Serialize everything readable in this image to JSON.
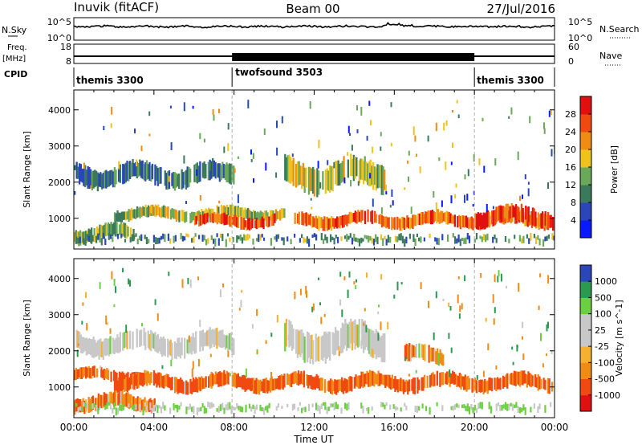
{
  "header": {
    "radar": "Inuvik (fitACF)",
    "beam": "Beam 00",
    "date": "27/Jul/2016"
  },
  "noise_panel": {
    "left_label": "N.Sky",
    "right_label": "N.Search",
    "left_ticks": [
      "10^5",
      "10^0"
    ],
    "right_ticks": [
      "10^5",
      "10^0"
    ]
  },
  "freq_panel": {
    "left_label_1": "Freq.",
    "left_label_2": "[MHz]",
    "right_label": "Nave",
    "left_ticks": [
      "18",
      "8"
    ],
    "right_ticks": [
      "60",
      "0"
    ]
  },
  "cpid_panel": {
    "label": "CPID",
    "segments": [
      {
        "name": "themis 3300",
        "start_hour": 0,
        "end_hour": 7.9
      },
      {
        "name": "twofsound 3503",
        "start_hour": 7.9,
        "end_hour": 20.0
      },
      {
        "name": "themis 3300",
        "start_hour": 20.0,
        "end_hour": 24
      }
    ]
  },
  "colors": {
    "power_scale": [
      "#0a1aff",
      "#2a46b8",
      "#3a7a5a",
      "#6aa85a",
      "#f0c21e",
      "#f08c14",
      "#f04a10",
      "#e01010"
    ],
    "velocity_scale": [
      "#e01010",
      "#f04a10",
      "#f08c14",
      "#f5b030",
      "#c8c8c8",
      "#c8c8c8",
      "#6ad040",
      "#2a9a50",
      "#2a46b8"
    ]
  },
  "chart_data": [
    {
      "type": "heatmap",
      "panel": "power",
      "ylabel": "Slant Range [km]",
      "yticks": [
        "1000",
        "2000",
        "3000",
        "4000"
      ],
      "ylim": [
        150,
        4550
      ],
      "xlim_hours": [
        0,
        24
      ],
      "colorbar": {
        "label": "Power [dB]",
        "ticks": [
          "4",
          "8",
          "12",
          "16",
          "20",
          "24",
          "28"
        ],
        "range": [
          0,
          32
        ]
      },
      "echo_bands": [
        {
          "start_hour": 0.1,
          "end_hour": 8.0,
          "range_km": [
            1900,
            2500
          ],
          "power_db": 10
        },
        {
          "start_hour": 2.0,
          "end_hour": 10.5,
          "range_km": [
            950,
            1300
          ],
          "power_db": 16
        },
        {
          "start_hour": 6.0,
          "end_hour": 10.0,
          "range_km": [
            750,
            1100
          ],
          "power_db": 26
        },
        {
          "start_hour": 10.5,
          "end_hour": 15.5,
          "range_km": [
            1800,
            2600
          ],
          "power_db": 16
        },
        {
          "start_hour": 11.0,
          "end_hour": 24.0,
          "range_km": [
            750,
            1150
          ],
          "power_db": 24
        },
        {
          "start_hour": 20.0,
          "end_hour": 23.8,
          "range_km": [
            800,
            1300
          ],
          "power_db": 28
        },
        {
          "start_hour": 0.0,
          "end_hour": 3.0,
          "range_km": [
            350,
            800
          ],
          "power_db": 14
        }
      ]
    },
    {
      "type": "heatmap",
      "panel": "velocity",
      "xlabel": "Time UT",
      "ylabel": "Slant Range [km]",
      "yticks": [
        "1000",
        "2000",
        "3000",
        "4000"
      ],
      "ylim": [
        150,
        4550
      ],
      "xticks": [
        "00:00",
        "04:00",
        "08:00",
        "12:00",
        "16:00",
        "20:00",
        "00:00"
      ],
      "xlim_hours": [
        0,
        24
      ],
      "colorbar": {
        "label": "Velocity [m s^-1]",
        "ticks": [
          "1000",
          "500",
          "100",
          "25",
          "-25",
          "-100",
          "-500",
          "-1000"
        ]
      },
      "echo_bands": [
        {
          "start_hour": 0.1,
          "end_hour": 8.0,
          "range_km": [
            1900,
            2500
          ],
          "velocity": 0
        },
        {
          "start_hour": 10.5,
          "end_hour": 15.5,
          "range_km": [
            1800,
            2700
          ],
          "velocity": 0
        },
        {
          "start_hour": 0.0,
          "end_hour": 3.5,
          "range_km": [
            1150,
            1500
          ],
          "velocity": -300
        },
        {
          "start_hour": 2.0,
          "end_hour": 24.0,
          "range_km": [
            900,
            1350
          ],
          "velocity": -300
        },
        {
          "start_hour": 0.0,
          "end_hour": 4.0,
          "range_km": [
            350,
            800
          ],
          "velocity": -200
        },
        {
          "start_hour": 16.5,
          "end_hour": 18.5,
          "range_km": [
            1600,
            2100
          ],
          "velocity": -150
        }
      ]
    }
  ]
}
